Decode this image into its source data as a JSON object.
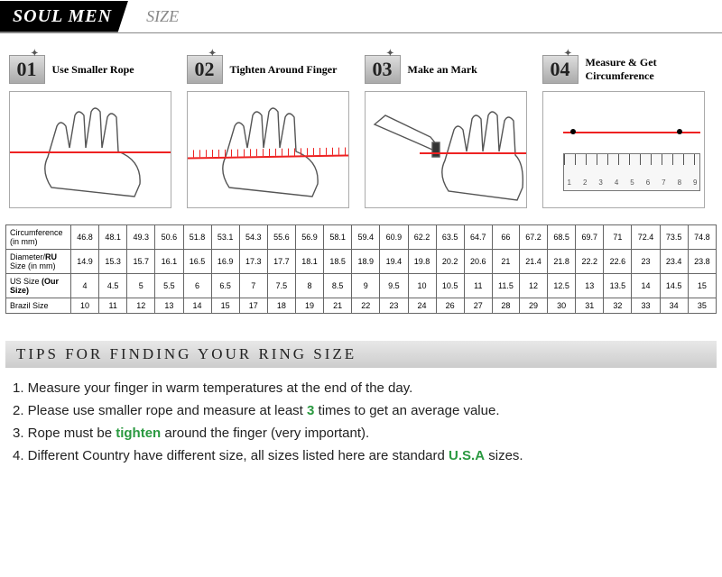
{
  "header": {
    "brand": "SOUL MEN",
    "label": "SIZE"
  },
  "steps": [
    {
      "num": "01",
      "title": "Use Smaller Rope"
    },
    {
      "num": "02",
      "title": "Tighten Around Finger"
    },
    {
      "num": "03",
      "title": "Make an Mark"
    },
    {
      "num": "04",
      "title": "Measure & Get Circumference"
    }
  ],
  "table": {
    "rows": [
      {
        "label": "Circumference (in mm)",
        "cells": [
          "46.8",
          "48.1",
          "49.3",
          "50.6",
          "51.8",
          "53.1",
          "54.3",
          "55.6",
          "56.9",
          "58.1",
          "59.4",
          "60.9",
          "62.2",
          "63.5",
          "64.7",
          "66",
          "67.2",
          "68.5",
          "69.7",
          "71",
          "72.4",
          "73.5",
          "74.8"
        ]
      },
      {
        "label": "Diameter/RU Size (in mm)",
        "cells": [
          "14.9",
          "15.3",
          "15.7",
          "16.1",
          "16.5",
          "16.9",
          "17.3",
          "17.7",
          "18.1",
          "18.5",
          "18.9",
          "19.4",
          "19.8",
          "20.2",
          "20.6",
          "21",
          "21.4",
          "21.8",
          "22.2",
          "22.6",
          "23",
          "23.4",
          "23.8"
        ]
      },
      {
        "label": "US Size (Our Size)",
        "cells": [
          "4",
          "4.5",
          "5",
          "5.5",
          "6",
          "6.5",
          "7",
          "7.5",
          "8",
          "8.5",
          "9",
          "9.5",
          "10",
          "10.5",
          "11",
          "11.5",
          "12",
          "12.5",
          "13",
          "13.5",
          "14",
          "14.5",
          "15"
        ]
      },
      {
        "label": "Brazil Size",
        "cells": [
          "10",
          "11",
          "12",
          "13",
          "14",
          "15",
          "17",
          "18",
          "19",
          "21",
          "22",
          "23",
          "24",
          "26",
          "27",
          "28",
          "29",
          "30",
          "31",
          "32",
          "33",
          "34",
          "35"
        ]
      }
    ]
  },
  "tips": {
    "heading": "TIPS FOR FINDING YOUR RING SIZE",
    "items": [
      {
        "n": "1.",
        "pre": "Measure your finger in warm temperatures at the end of the day.",
        "g": "",
        "post": ""
      },
      {
        "n": "2.",
        "pre": "Please use smaller rope and measure at least ",
        "g": "3",
        "post": " times to get an average value."
      },
      {
        "n": "3.",
        "pre": "Rope must be ",
        "g": "tighten",
        "post": " around the finger (very important)."
      },
      {
        "n": "4.",
        "pre": "Different Country have different size, all sizes listed here are standard ",
        "g": "U.S.A",
        "post": " sizes."
      }
    ]
  },
  "ruler_nums": [
    "1",
    "2",
    "3",
    "4",
    "5",
    "6",
    "7",
    "8",
    "9"
  ]
}
